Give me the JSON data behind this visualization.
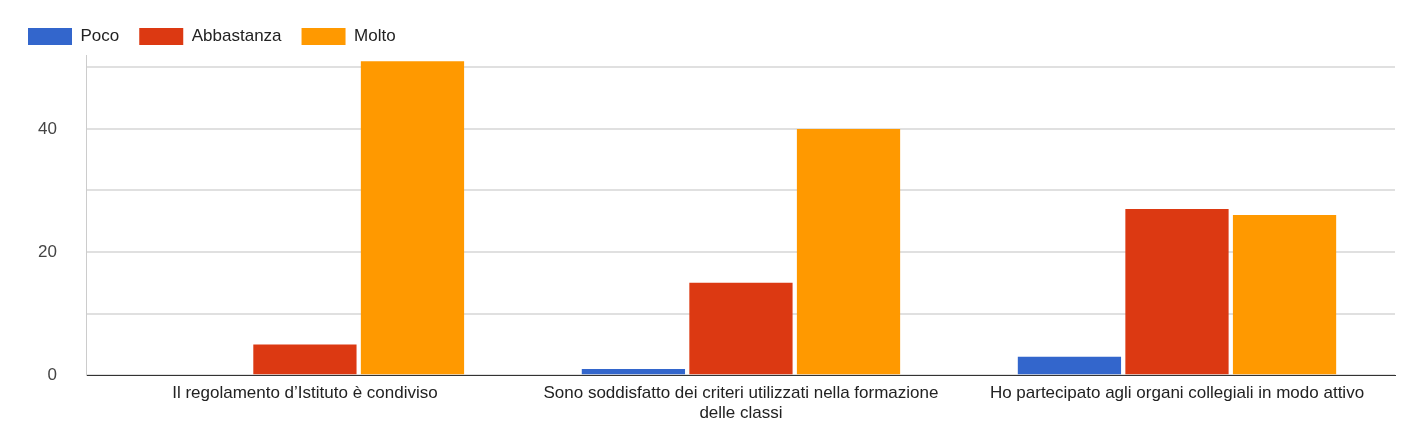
{
  "chart_data": {
    "type": "bar",
    "categories": [
      "Il regolamento d’Istituto è condiviso",
      "Sono soddisfatto dei criteri utilizzati nella formazione delle classi",
      "Ho partecipato agli organi collegiali in modo attivo"
    ],
    "series": [
      {
        "name": "Poco",
        "color": "#3366cc",
        "values": [
          0,
          1,
          3
        ]
      },
      {
        "name": "Abbastanza",
        "color": "#dc3912",
        "values": [
          5,
          15,
          27
        ]
      },
      {
        "name": "Molto",
        "color": "#ff9900",
        "values": [
          51,
          40,
          26
        ]
      }
    ],
    "ylim": [
      0,
      52
    ],
    "yticks": [
      0,
      {
        "value": 10,
        "label": null
      },
      20,
      {
        "value": 30,
        "label": null
      },
      40,
      {
        "value": 50,
        "label": null
      }
    ],
    "grid": "y",
    "legend": "top left"
  }
}
